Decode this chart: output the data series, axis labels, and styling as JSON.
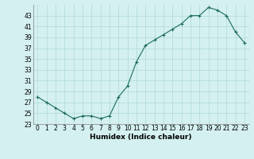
{
  "x": [
    0,
    1,
    2,
    3,
    4,
    5,
    6,
    7,
    8,
    9,
    10,
    11,
    12,
    13,
    14,
    15,
    16,
    17,
    18,
    19,
    20,
    21,
    22,
    23
  ],
  "y": [
    28,
    27,
    26,
    25,
    24,
    24.5,
    24.5,
    24,
    24.5,
    28,
    30,
    34.5,
    37.5,
    38.5,
    39.5,
    40.5,
    41.5,
    43,
    43,
    44.5,
    44,
    43,
    40,
    38
  ],
  "xlabel": "Humidex (Indice chaleur)",
  "ylim": [
    23,
    45
  ],
  "xlim": [
    -0.5,
    23.5
  ],
  "yticks": [
    23,
    25,
    27,
    29,
    31,
    33,
    35,
    37,
    39,
    41,
    43
  ],
  "xticks": [
    0,
    1,
    2,
    3,
    4,
    5,
    6,
    7,
    8,
    9,
    10,
    11,
    12,
    13,
    14,
    15,
    16,
    17,
    18,
    19,
    20,
    21,
    22,
    23
  ],
  "line_color": "#1a6b5a",
  "marker": "+",
  "marker_size": 3,
  "marker_lw": 0.8,
  "line_width": 0.8,
  "bg_color": "#d4f0f0",
  "grid_color": "#b0d8d8",
  "tick_fontsize": 5.5,
  "xlabel_fontsize": 6.5
}
